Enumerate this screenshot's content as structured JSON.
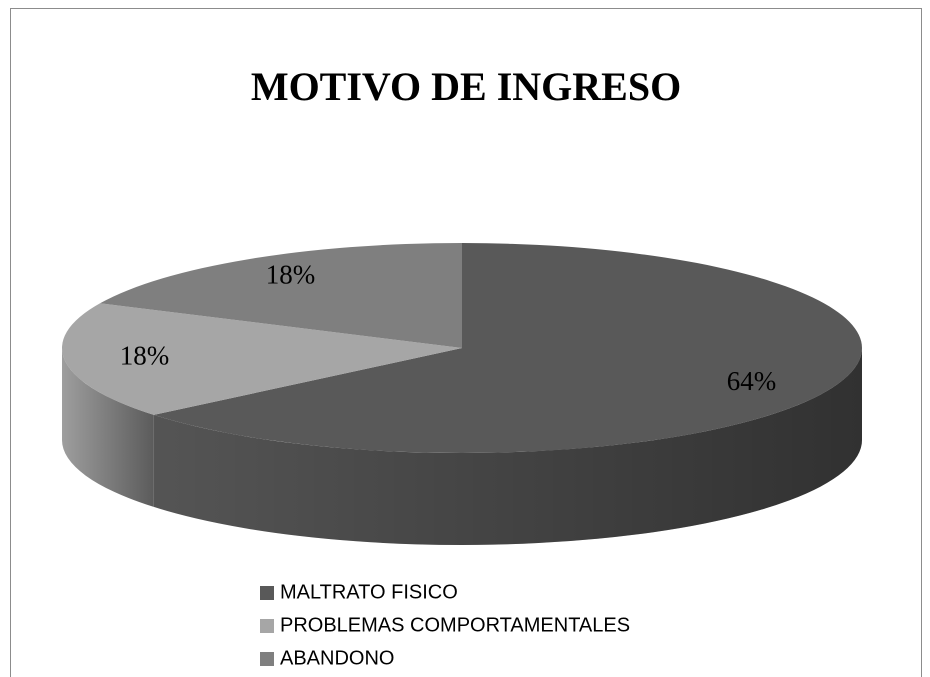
{
  "chart_data": {
    "type": "pie",
    "title": "MOTIVO DE INGRESO",
    "categories": [
      "MALTRATO FISICO",
      "PROBLEMAS COMPORTAMENTALES",
      "ABANDONO"
    ],
    "values": [
      64,
      18,
      18
    ],
    "value_labels": [
      "64%",
      "18%",
      "18%"
    ],
    "colors": [
      "#595959",
      "#a6a6a6",
      "#7f7f7f"
    ],
    "legend": "bottom"
  }
}
